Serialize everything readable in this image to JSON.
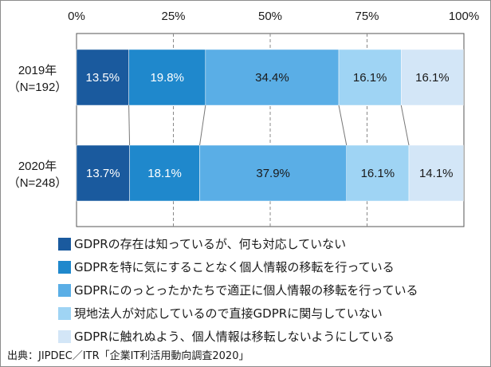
{
  "chart_data": {
    "type": "bar",
    "orientation": "horizontal",
    "stacked": true,
    "categories": [
      "2019年（N=192）",
      "2020年（N=248）"
    ],
    "category_lines": [
      [
        "2019年",
        "（N=192）"
      ],
      [
        "2020年",
        "（N=248）"
      ]
    ],
    "series": [
      {
        "name": "GDPRの存在は知っているが、何も対応していない",
        "values": [
          13.5,
          13.7
        ],
        "color": "#1a5a9e",
        "label_color": "#ffffff"
      },
      {
        "name": "GDPRを特に気にすることなく個人情報の移転を行っている",
        "values": [
          19.8,
          18.1
        ],
        "color": "#1f88cc",
        "label_color": "#ffffff"
      },
      {
        "name": "GDPRにのっとったかたちで適正に個人情報の移転を行っている",
        "values": [
          34.4,
          37.9
        ],
        "color": "#5aaee6",
        "label_color": "#1a1a1a"
      },
      {
        "name": "現地法人が対応しているので直接GDPRに関与していない",
        "values": [
          16.1,
          16.1
        ],
        "color": "#9fd4f4",
        "label_color": "#1a1a1a"
      },
      {
        "name": "GDPRに触れぬよう、個人情報は移転しないようにしている",
        "values": [
          16.1,
          14.1
        ],
        "color": "#d3e6f7",
        "label_color": "#1a1a1a"
      }
    ],
    "value_labels": [
      [
        "13.5%",
        "19.8%",
        "34.4%",
        "16.1%",
        "16.1%"
      ],
      [
        "13.7%",
        "18.1%",
        "37.9%",
        "16.1%",
        "14.1%"
      ]
    ],
    "x_ticks": [
      0,
      25,
      50,
      75,
      100
    ],
    "x_tick_labels": [
      "0%",
      "25%",
      "50%",
      "75%",
      "100%"
    ],
    "xlim": [
      0,
      100
    ],
    "grid": "vertical-dashed",
    "legend_position": "bottom"
  },
  "source": "出典：JIPDEC／ITR「企業IT利活用動向調査2020」"
}
